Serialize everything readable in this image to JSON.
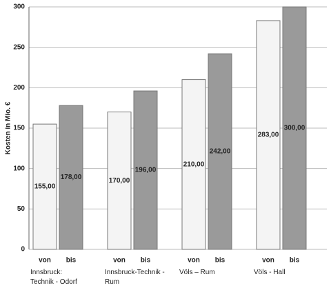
{
  "chart_data": {
    "type": "bar",
    "ylabel": "Kosten in Mio. €",
    "categories": [
      "Innsbruck:\nTechnik - Odorf",
      "Innsbruck-Technik -\nRum",
      "Völs – Rum",
      "Völs - Hall"
    ],
    "series": [
      {
        "name": "von",
        "color": "#f4f4f4",
        "values": [
          155,
          170,
          210,
          283
        ],
        "value_labels": [
          "155,00",
          "170,00",
          "210,00",
          "283,00"
        ]
      },
      {
        "name": "bis",
        "color": "#9a9a9a",
        "values": [
          178,
          196,
          242,
          300
        ],
        "value_labels": [
          "178,00",
          "196,00",
          "242,00",
          "300,00"
        ]
      }
    ],
    "ylim": [
      0,
      300
    ],
    "yticks": [
      0,
      50,
      100,
      150,
      200,
      250,
      300
    ],
    "grid": true
  }
}
